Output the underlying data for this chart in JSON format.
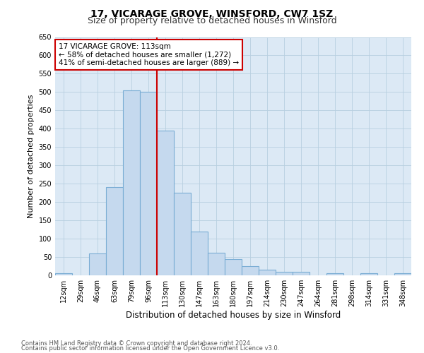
{
  "title1": "17, VICARAGE GROVE, WINSFORD, CW7 1SZ",
  "title2": "Size of property relative to detached houses in Winsford",
  "xlabel": "Distribution of detached houses by size in Winsford",
  "ylabel": "Number of detached properties",
  "categories": [
    "12sqm",
    "29sqm",
    "46sqm",
    "63sqm",
    "79sqm",
    "96sqm",
    "113sqm",
    "130sqm",
    "147sqm",
    "163sqm",
    "180sqm",
    "197sqm",
    "214sqm",
    "230sqm",
    "247sqm",
    "264sqm",
    "281sqm",
    "298sqm",
    "314sqm",
    "331sqm",
    "348sqm"
  ],
  "values": [
    5,
    0,
    60,
    240,
    505,
    500,
    395,
    225,
    120,
    62,
    45,
    25,
    15,
    10,
    10,
    0,
    5,
    0,
    5,
    0,
    5
  ],
  "bar_color": "#c5d9ee",
  "bar_edge_color": "#7aadd4",
  "marker_index": 6,
  "marker_color": "#cc0000",
  "annotation_line1": "17 VICARAGE GROVE: 113sqm",
  "annotation_line2": "← 58% of detached houses are smaller (1,272)",
  "annotation_line3": "41% of semi-detached houses are larger (889) →",
  "annotation_box_color": "#cc0000",
  "ylim": [
    0,
    650
  ],
  "yticks": [
    0,
    50,
    100,
    150,
    200,
    250,
    300,
    350,
    400,
    450,
    500,
    550,
    600,
    650
  ],
  "footnote1": "Contains HM Land Registry data © Crown copyright and database right 2024.",
  "footnote2": "Contains public sector information licensed under the Open Government Licence v3.0.",
  "background_color": "#ffffff",
  "plot_bg_color": "#dce9f5",
  "grid_color": "#b8cfe0",
  "title1_fontsize": 10,
  "title2_fontsize": 9,
  "tick_fontsize": 7,
  "ylabel_fontsize": 8,
  "xlabel_fontsize": 8.5,
  "footnote_fontsize": 6,
  "annotation_fontsize": 7.5
}
